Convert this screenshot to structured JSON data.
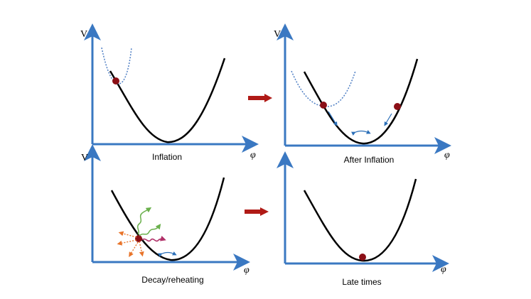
{
  "panels": {
    "inflation": {
      "y_label": "V",
      "x_label": "φ",
      "caption": "Inflation"
    },
    "after_inflation": {
      "y_label": "V",
      "x_label": "φ",
      "caption": "After Inflation"
    },
    "decay": {
      "y_label": "V",
      "x_label": "φ",
      "caption": "Decay/reheating"
    },
    "late_times": {
      "x_label": "φ",
      "caption": "Late times"
    }
  },
  "colors": {
    "axis": "#3a78c2",
    "curve": "#000000",
    "dotted": "#4f7fc4",
    "ball": "#8b0f16",
    "arrow": "#b01a16",
    "small_arrow": "#2b6fb8",
    "green_wave": "#6ab04c",
    "pink_wave": "#b03068",
    "orange": "#e8742a"
  }
}
